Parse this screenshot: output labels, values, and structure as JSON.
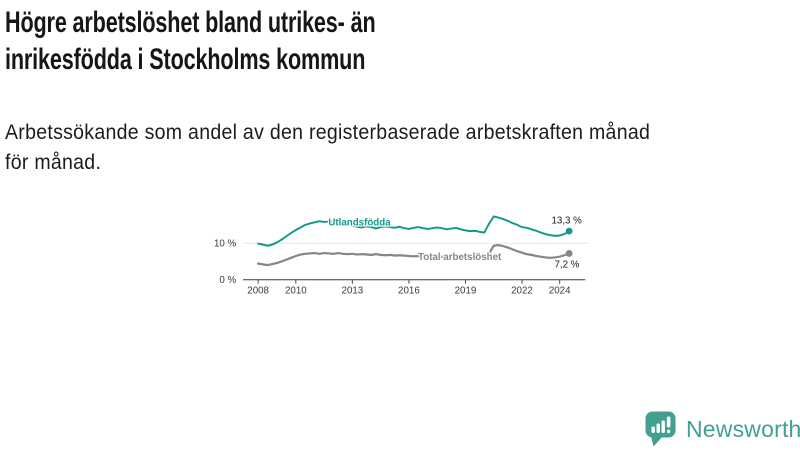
{
  "header": {
    "title_line1": "Högre arbetslöshet bland utrikes- än",
    "title_line2": "inrikesfödda i Stockholms kommun",
    "subtitle_line1": "Arbetssökande som andel av den registerbaserade arbetskraften månad",
    "subtitle_line2": "för månad."
  },
  "chart_data": {
    "type": "line",
    "title": "Högre arbetslöshet bland utrikes- än inrikesfödda i Stockholms kommun",
    "subtitle": "Arbetssökande som andel av den registerbaserade arbetskraften månad för månad.",
    "unit": "%",
    "grid": "horizontal",
    "legend": "inline-labels",
    "y_range": [
      0,
      20
    ],
    "x_range": [
      2008,
      2024.5
    ],
    "x_ticks": [
      "2008",
      "2010",
      "2013",
      "2016",
      "2019",
      "2022",
      "2024"
    ],
    "y_ticks": [
      {
        "value": 0,
        "label": "0 %"
      },
      {
        "value": 10,
        "label": "10 %"
      }
    ],
    "axis_color": "#3b3b3b",
    "gridline_color": "#d8d8d8",
    "x": [
      2008,
      2008.25,
      2008.5,
      2008.75,
      2009,
      2009.25,
      2009.5,
      2009.75,
      2010,
      2010.25,
      2010.5,
      2010.75,
      2011,
      2011.25,
      2011.5,
      2011.75,
      2012,
      2012.25,
      2012.5,
      2012.75,
      2013,
      2013.25,
      2013.5,
      2013.75,
      2014,
      2014.25,
      2014.5,
      2014.75,
      2015,
      2015.25,
      2015.5,
      2015.75,
      2016,
      2016.25,
      2016.5,
      2016.75,
      2017,
      2017.25,
      2017.5,
      2017.75,
      2018,
      2018.25,
      2018.5,
      2018.75,
      2019,
      2019.25,
      2019.5,
      2019.75,
      2020,
      2020.25,
      2020.5,
      2020.75,
      2021,
      2021.25,
      2021.5,
      2021.75,
      2022,
      2022.25,
      2022.5,
      2022.75,
      2023,
      2023.25,
      2023.5,
      2023.75,
      2024,
      2024.25,
      2024.5
    ],
    "series": [
      {
        "name": "Utlandsfödda",
        "color": "#12998b",
        "end_label": "13,3 %",
        "end_value": 13.3,
        "values": [
          9.9,
          9.6,
          9.3,
          9.6,
          10.2,
          11.0,
          11.9,
          12.8,
          13.6,
          14.3,
          15.0,
          15.4,
          15.7,
          16.0,
          15.8,
          15.9,
          16.0,
          15.7,
          15.5,
          15.1,
          14.8,
          14.5,
          14.3,
          14.6,
          14.4,
          14.0,
          14.4,
          14.6,
          14.4,
          14.2,
          14.5,
          14.1,
          13.9,
          14.2,
          14.4,
          14.1,
          13.9,
          14.1,
          14.3,
          14.1,
          13.8,
          14.0,
          14.2,
          13.8,
          13.5,
          13.3,
          13.4,
          13.1,
          12.9,
          15.3,
          17.3,
          17.0,
          16.6,
          16.1,
          15.5,
          15.0,
          14.4,
          14.2,
          13.8,
          13.4,
          12.9,
          12.5,
          12.2,
          12.0,
          12.1,
          12.5,
          13.3
        ]
      },
      {
        "name": "Total arbetslöshet",
        "color": "#868686",
        "end_label": "7,2 %",
        "end_value": 7.2,
        "values": [
          4.4,
          4.2,
          4.0,
          4.3,
          4.6,
          5.0,
          5.5,
          6.0,
          6.5,
          6.9,
          7.1,
          7.2,
          7.3,
          7.1,
          7.3,
          7.2,
          7.1,
          7.3,
          7.1,
          7.0,
          7.1,
          6.9,
          7.0,
          6.9,
          6.8,
          7.0,
          6.8,
          6.7,
          6.8,
          6.6,
          6.7,
          6.6,
          6.5,
          6.4,
          6.5,
          6.4,
          6.3,
          6.4,
          6.2,
          6.3,
          6.1,
          6.2,
          6.0,
          6.1,
          5.9,
          6.0,
          5.8,
          5.9,
          6.0,
          7.2,
          9.3,
          9.5,
          9.2,
          8.8,
          8.3,
          7.8,
          7.4,
          7.0,
          6.8,
          6.5,
          6.3,
          6.1,
          6.0,
          6.1,
          6.3,
          6.7,
          7.2
        ]
      }
    ]
  },
  "footer": {
    "brand": "Newsworthy",
    "brand_color": "#43a091"
  }
}
